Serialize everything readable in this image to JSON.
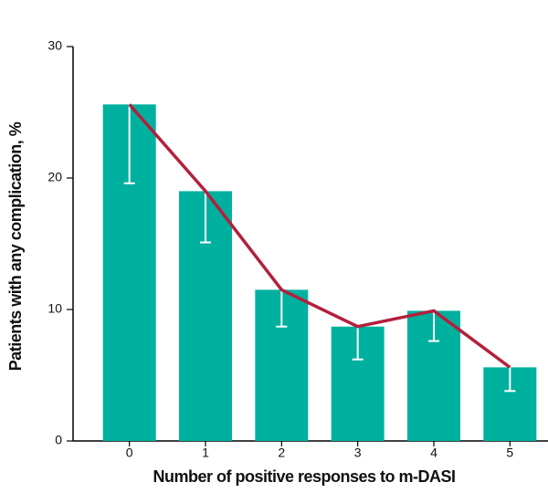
{
  "chart_data": {
    "type": "bar",
    "x_label": "Number of positive responses to m-DASI",
    "y_label": "Patients with any complication, %",
    "categories": [
      "0",
      "1",
      "2",
      "3",
      "4",
      "5"
    ],
    "values": [
      25.6,
      19.0,
      11.5,
      8.7,
      9.9,
      5.6
    ],
    "errors": [
      6.0,
      3.9,
      2.8,
      2.5,
      2.3,
      1.8
    ],
    "color": "#00b09f",
    "line_color": "#b3203c",
    "ylim": [
      0,
      30
    ],
    "yticks": [
      0,
      10,
      20,
      30
    ]
  }
}
